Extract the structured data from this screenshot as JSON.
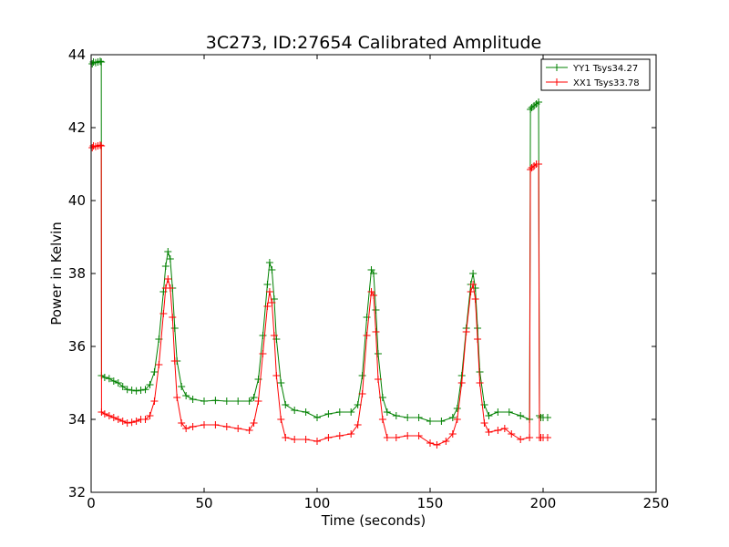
{
  "chart_data": {
    "type": "line",
    "title": "3C273, ID:27654 Calibrated Amplitude",
    "xlabel": "Time (seconds)",
    "ylabel": "Power in Kelvin",
    "xlim": [
      0,
      250
    ],
    "ylim": [
      32,
      44
    ],
    "xticks": [
      0,
      50,
      100,
      150,
      200,
      250
    ],
    "yticks": [
      32,
      34,
      36,
      38,
      40,
      42,
      44
    ],
    "xtick_labels": [
      "0",
      "50",
      "100",
      "150",
      "200",
      "250"
    ],
    "ytick_labels": [
      "32",
      "34",
      "36",
      "38",
      "40",
      "42",
      "44"
    ],
    "grid": false,
    "legend_position": "top-right",
    "marker": "+",
    "series": [
      {
        "name": "YY1 Tsys34.27",
        "color": "#008000",
        "points": [
          [
            0.5,
            43.75
          ],
          [
            1,
            43.8
          ],
          [
            2,
            43.78
          ],
          [
            3,
            43.8
          ],
          [
            4,
            43.82
          ],
          [
            4.5,
            43.8
          ],
          [
            4.6,
            35.2
          ],
          [
            6,
            35.15
          ],
          [
            8,
            35.12
          ],
          [
            10,
            35.05
          ],
          [
            12,
            35.0
          ],
          [
            14,
            34.9
          ],
          [
            16,
            34.82
          ],
          [
            18,
            34.8
          ],
          [
            20,
            34.78
          ],
          [
            22,
            34.8
          ],
          [
            24,
            34.82
          ],
          [
            26,
            34.95
          ],
          [
            28,
            35.3
          ],
          [
            30,
            36.2
          ],
          [
            32,
            37.5
          ],
          [
            33,
            38.2
          ],
          [
            34,
            38.6
          ],
          [
            35,
            38.4
          ],
          [
            36,
            37.6
          ],
          [
            37,
            36.5
          ],
          [
            38,
            35.6
          ],
          [
            40,
            34.9
          ],
          [
            42,
            34.65
          ],
          [
            45,
            34.55
          ],
          [
            50,
            34.5
          ],
          [
            55,
            34.52
          ],
          [
            60,
            34.5
          ],
          [
            65,
            34.5
          ],
          [
            70,
            34.5
          ],
          [
            72,
            34.6
          ],
          [
            74,
            35.1
          ],
          [
            76,
            36.3
          ],
          [
            78,
            37.7
          ],
          [
            79,
            38.3
          ],
          [
            80,
            38.1
          ],
          [
            81,
            37.3
          ],
          [
            82,
            36.2
          ],
          [
            84,
            35.0
          ],
          [
            86,
            34.4
          ],
          [
            90,
            34.25
          ],
          [
            95,
            34.2
          ],
          [
            100,
            34.05
          ],
          [
            105,
            34.15
          ],
          [
            110,
            34.2
          ],
          [
            115,
            34.2
          ],
          [
            118,
            34.4
          ],
          [
            120,
            35.2
          ],
          [
            122,
            36.8
          ],
          [
            124,
            38.1
          ],
          [
            125,
            38.0
          ],
          [
            126,
            37.0
          ],
          [
            127,
            35.8
          ],
          [
            129,
            34.6
          ],
          [
            131,
            34.2
          ],
          [
            135,
            34.1
          ],
          [
            140,
            34.05
          ],
          [
            145,
            34.05
          ],
          [
            150,
            33.95
          ],
          [
            155,
            33.95
          ],
          [
            160,
            34.05
          ],
          [
            162,
            34.3
          ],
          [
            164,
            35.2
          ],
          [
            166,
            36.5
          ],
          [
            168,
            37.7
          ],
          [
            169,
            38.0
          ],
          [
            170,
            37.6
          ],
          [
            171,
            36.5
          ],
          [
            172,
            35.3
          ],
          [
            174,
            34.4
          ],
          [
            176,
            34.1
          ],
          [
            180,
            34.2
          ],
          [
            185,
            34.2
          ],
          [
            190,
            34.1
          ],
          [
            194,
            34.0
          ],
          [
            194.4,
            42.5
          ],
          [
            195,
            42.55
          ],
          [
            196,
            42.6
          ],
          [
            197,
            42.65
          ],
          [
            198,
            42.7
          ],
          [
            198.4,
            34.1
          ],
          [
            199,
            34.05
          ],
          [
            200,
            34.05
          ],
          [
            202,
            34.05
          ]
        ]
      },
      {
        "name": "XX1 Tsys33.78",
        "color": "#ff0000",
        "points": [
          [
            0.5,
            41.45
          ],
          [
            1,
            41.5
          ],
          [
            2,
            41.48
          ],
          [
            3,
            41.5
          ],
          [
            4,
            41.52
          ],
          [
            4.5,
            41.5
          ],
          [
            4.6,
            34.2
          ],
          [
            6,
            34.15
          ],
          [
            8,
            34.1
          ],
          [
            10,
            34.05
          ],
          [
            12,
            34.0
          ],
          [
            14,
            33.95
          ],
          [
            16,
            33.9
          ],
          [
            18,
            33.92
          ],
          [
            20,
            33.95
          ],
          [
            22,
            34.0
          ],
          [
            24,
            34.0
          ],
          [
            26,
            34.1
          ],
          [
            28,
            34.5
          ],
          [
            30,
            35.5
          ],
          [
            32,
            36.9
          ],
          [
            33,
            37.6
          ],
          [
            34,
            37.85
          ],
          [
            35,
            37.6
          ],
          [
            36,
            36.8
          ],
          [
            37,
            35.6
          ],
          [
            38,
            34.6
          ],
          [
            40,
            33.9
          ],
          [
            42,
            33.75
          ],
          [
            45,
            33.8
          ],
          [
            50,
            33.85
          ],
          [
            55,
            33.85
          ],
          [
            60,
            33.8
          ],
          [
            65,
            33.75
          ],
          [
            70,
            33.7
          ],
          [
            72,
            33.9
          ],
          [
            74,
            34.5
          ],
          [
            76,
            35.8
          ],
          [
            78,
            37.1
          ],
          [
            79,
            37.5
          ],
          [
            80,
            37.2
          ],
          [
            81,
            36.3
          ],
          [
            82,
            35.2
          ],
          [
            84,
            34.0
          ],
          [
            86,
            33.5
          ],
          [
            90,
            33.45
          ],
          [
            95,
            33.45
          ],
          [
            100,
            33.4
          ],
          [
            105,
            33.5
          ],
          [
            110,
            33.55
          ],
          [
            115,
            33.6
          ],
          [
            118,
            33.85
          ],
          [
            120,
            34.7
          ],
          [
            122,
            36.3
          ],
          [
            124,
            37.5
          ],
          [
            125,
            37.4
          ],
          [
            126,
            36.4
          ],
          [
            127,
            35.1
          ],
          [
            129,
            34.0
          ],
          [
            131,
            33.5
          ],
          [
            135,
            33.5
          ],
          [
            140,
            33.55
          ],
          [
            145,
            33.55
          ],
          [
            150,
            33.35
          ],
          [
            153,
            33.3
          ],
          [
            157,
            33.4
          ],
          [
            160,
            33.6
          ],
          [
            162,
            34.0
          ],
          [
            164,
            35.0
          ],
          [
            166,
            36.4
          ],
          [
            168,
            37.5
          ],
          [
            169,
            37.7
          ],
          [
            170,
            37.3
          ],
          [
            171,
            36.2
          ],
          [
            172,
            35.0
          ],
          [
            174,
            33.9
          ],
          [
            176,
            33.65
          ],
          [
            180,
            33.7
          ],
          [
            183,
            33.75
          ],
          [
            186,
            33.6
          ],
          [
            190,
            33.45
          ],
          [
            194,
            33.5
          ],
          [
            194.4,
            40.85
          ],
          [
            195,
            40.9
          ],
          [
            196,
            40.95
          ],
          [
            197,
            41.0
          ],
          [
            198,
            41.0
          ],
          [
            198.4,
            33.5
          ],
          [
            199,
            33.5
          ],
          [
            200,
            33.5
          ],
          [
            202,
            33.5
          ]
        ]
      }
    ]
  }
}
